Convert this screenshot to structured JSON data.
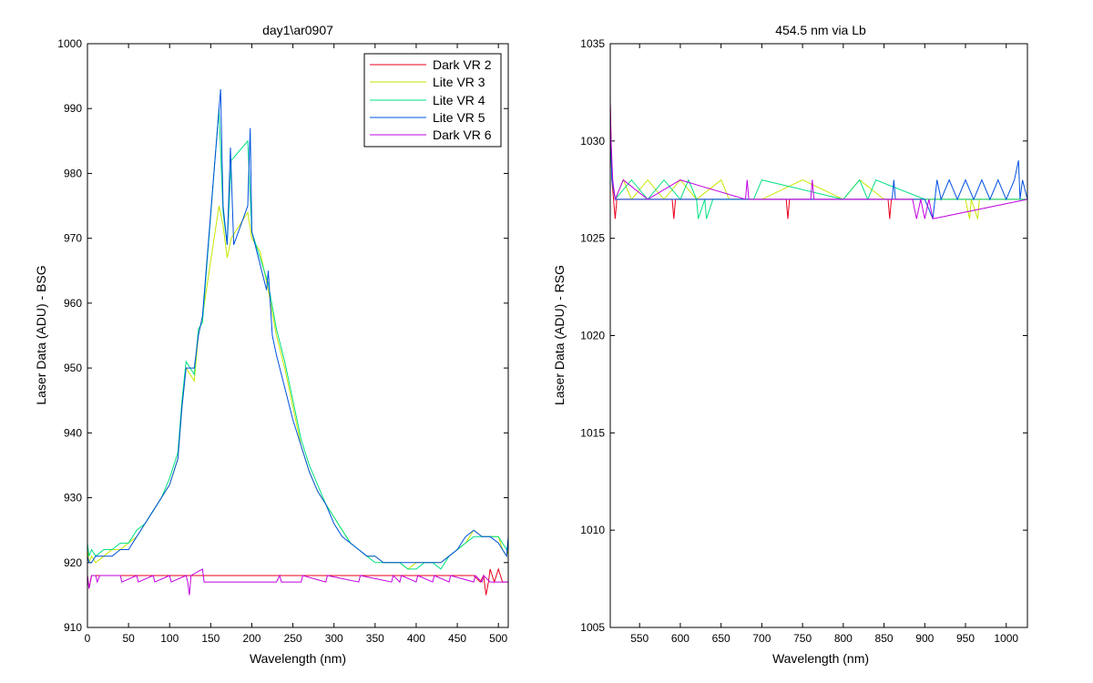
{
  "chart_data": [
    {
      "type": "line",
      "title": "day1\\ar0907",
      "xlabel": "Wavelength (nm)",
      "ylabel": "Laser Data (ADU) - BSG",
      "xlim": [
        0,
        512
      ],
      "ylim": [
        910,
        1000
      ],
      "xticks": [
        0,
        50,
        100,
        150,
        200,
        250,
        300,
        350,
        400,
        450,
        500
      ],
      "yticks": [
        910,
        920,
        930,
        940,
        950,
        960,
        970,
        980,
        990,
        1000
      ],
      "grid": false,
      "legend_position": "top-right",
      "series": [
        {
          "name": "Dark VR 2",
          "color": "#e8001c",
          "x": [
            0,
            2,
            5,
            10,
            20,
            40,
            60,
            80,
            100,
            120,
            140,
            160,
            200,
            250,
            300,
            350,
            400,
            450,
            470,
            478,
            482,
            485,
            488,
            490,
            495,
            500,
            505,
            512
          ],
          "y": [
            918,
            916,
            918,
            918,
            918,
            918,
            918,
            918,
            918,
            918,
            918,
            918,
            918,
            918,
            918,
            918,
            918,
            918,
            918,
            917,
            918,
            915,
            917,
            919,
            917,
            919,
            917,
            917
          ]
        },
        {
          "name": "Lite VR 3",
          "color": "#c8e600",
          "x": [
            0,
            2,
            5,
            10,
            20,
            30,
            40,
            50,
            60,
            70,
            80,
            90,
            100,
            110,
            115,
            120,
            125,
            130,
            135,
            140,
            160,
            165,
            170,
            175,
            195,
            200,
            210,
            220,
            230,
            240,
            250,
            260,
            270,
            280,
            290,
            300,
            310,
            320,
            330,
            340,
            350,
            360,
            370,
            380,
            390,
            400,
            410,
            420,
            430,
            440,
            450,
            460,
            470,
            480,
            490,
            500,
            505,
            510,
            512
          ],
          "y": [
            922,
            920,
            921,
            920,
            921,
            922,
            922,
            923,
            924,
            926,
            928,
            930,
            932,
            936,
            944,
            950,
            949,
            948,
            955,
            958,
            975,
            972,
            967,
            970,
            974,
            970,
            968,
            962,
            955,
            950,
            944,
            938,
            934,
            931,
            929,
            927,
            925,
            923,
            922,
            921,
            921,
            920,
            920,
            920,
            919,
            920,
            920,
            920,
            920,
            921,
            922,
            923,
            925,
            924,
            924,
            924,
            922,
            921,
            922
          ]
        },
        {
          "name": "Lite VR 4",
          "color": "#00e080",
          "x": [
            0,
            2,
            5,
            10,
            20,
            30,
            40,
            50,
            60,
            70,
            80,
            90,
            100,
            110,
            115,
            120,
            125,
            130,
            135,
            140,
            160,
            165,
            170,
            175,
            195,
            200,
            210,
            220,
            230,
            240,
            250,
            260,
            270,
            280,
            290,
            300,
            310,
            320,
            330,
            340,
            350,
            360,
            370,
            380,
            390,
            400,
            410,
            420,
            430,
            440,
            450,
            460,
            470,
            480,
            490,
            500,
            505,
            510,
            512
          ],
          "y": [
            923,
            921,
            922,
            921,
            922,
            922,
            923,
            923,
            925,
            926,
            928,
            930,
            933,
            937,
            945,
            951,
            950,
            949,
            956,
            957,
            990,
            974,
            969,
            982,
            985,
            971,
            967,
            963,
            956,
            951,
            945,
            939,
            935,
            932,
            929,
            927,
            925,
            923,
            922,
            921,
            920,
            920,
            920,
            920,
            919,
            919,
            920,
            920,
            919,
            921,
            922,
            923,
            924,
            924,
            924,
            924,
            923,
            922,
            923
          ]
        },
        {
          "name": "Lite VR 5",
          "color": "#0050e0",
          "x": [
            0,
            2,
            5,
            10,
            20,
            30,
            40,
            50,
            60,
            70,
            80,
            90,
            100,
            110,
            115,
            120,
            125,
            130,
            135,
            140,
            162,
            165,
            170,
            174,
            178,
            195,
            198,
            200,
            210,
            218,
            220,
            225,
            230,
            240,
            250,
            260,
            270,
            280,
            290,
            300,
            310,
            320,
            330,
            340,
            350,
            360,
            370,
            380,
            390,
            400,
            410,
            420,
            430,
            440,
            450,
            460,
            470,
            480,
            490,
            500,
            505,
            510,
            512
          ],
          "y": [
            921,
            920,
            920,
            921,
            921,
            921,
            922,
            922,
            924,
            926,
            928,
            930,
            932,
            936,
            944,
            950,
            950,
            950,
            955,
            958,
            993,
            975,
            969,
            984,
            969,
            975,
            987,
            971,
            966,
            962,
            965,
            955,
            952,
            947,
            942,
            938,
            934,
            931,
            929,
            926,
            924,
            923,
            922,
            921,
            921,
            920,
            920,
            920,
            920,
            920,
            920,
            920,
            920,
            921,
            922,
            924,
            925,
            924,
            924,
            923,
            922,
            921,
            924
          ]
        },
        {
          "name": "Dark VR 6",
          "color": "#c000e0",
          "x": [
            0,
            2,
            5,
            10,
            12,
            15,
            20,
            40,
            42,
            60,
            62,
            80,
            82,
            100,
            102,
            120,
            122,
            124,
            126,
            140,
            142,
            160,
            200,
            230,
            234,
            236,
            250,
            260,
            262,
            290,
            292,
            330,
            332,
            370,
            372,
            380,
            382,
            400,
            402,
            420,
            422,
            440,
            442,
            470,
            472,
            480,
            482,
            490,
            500,
            512
          ],
          "y": [
            918,
            916,
            918,
            918,
            917,
            918,
            918,
            918,
            917,
            918,
            917,
            918,
            917,
            918,
            917,
            918,
            917,
            915,
            918,
            919,
            917,
            917,
            917,
            917,
            918,
            917,
            917,
            917,
            918,
            917,
            918,
            917,
            918,
            917,
            918,
            917,
            918,
            917,
            918,
            917,
            918,
            917,
            918,
            917,
            918,
            917,
            918,
            917,
            917,
            917
          ]
        }
      ]
    },
    {
      "type": "line",
      "title": "454.5 nm via Lb",
      "xlabel": "Wavelength (nm)",
      "ylabel": "Laser Data (ADU) - RSG",
      "xlim": [
        514,
        1026
      ],
      "ylim": [
        1005,
        1035
      ],
      "xticks": [
        550,
        600,
        650,
        700,
        750,
        800,
        850,
        900,
        950,
        1000
      ],
      "yticks": [
        1005,
        1010,
        1015,
        1020,
        1025,
        1030,
        1035
      ],
      "grid": false,
      "legend_position": "none",
      "series": [
        {
          "name": "Dark VR 2",
          "color": "#e8001c",
          "x": [
            514,
            516,
            518,
            520,
            522,
            524,
            530,
            590,
            592,
            594,
            600,
            730,
            732,
            734,
            740,
            855,
            857,
            859,
            870,
            1026
          ],
          "y": [
            1032,
            1028,
            1027,
            1026,
            1027,
            1027,
            1027,
            1027,
            1026,
            1027,
            1027,
            1027,
            1026,
            1027,
            1027,
            1027,
            1026,
            1027,
            1027,
            1027
          ]
        },
        {
          "name": "Lite VR 3",
          "color": "#c8e600",
          "x": [
            514,
            516,
            520,
            530,
            540,
            560,
            580,
            600,
            620,
            650,
            660,
            700,
            750,
            800,
            820,
            850,
            950,
            955,
            957,
            965,
            967,
            1000,
            1026
          ],
          "y": [
            1031,
            1028,
            1027,
            1028,
            1027,
            1028,
            1027,
            1028,
            1027,
            1028,
            1027,
            1027,
            1028,
            1027,
            1028,
            1027,
            1027,
            1026,
            1027,
            1026,
            1027,
            1027,
            1027
          ]
        },
        {
          "name": "Lite VR 4",
          "color": "#00e080",
          "x": [
            514,
            516,
            520,
            540,
            560,
            580,
            600,
            610,
            620,
            622,
            630,
            632,
            640,
            690,
            700,
            800,
            820,
            830,
            840,
            900,
            1026
          ],
          "y": [
            1031,
            1028,
            1027,
            1028,
            1027,
            1028,
            1027,
            1028,
            1027,
            1026,
            1027,
            1026,
            1027,
            1027,
            1028,
            1027,
            1028,
            1027,
            1028,
            1027,
            1027
          ]
        },
        {
          "name": "Lite VR 5",
          "color": "#0050e0",
          "x": [
            514,
            516,
            520,
            600,
            860,
            862,
            864,
            900,
            910,
            915,
            920,
            930,
            940,
            950,
            960,
            970,
            980,
            990,
            1000,
            1010,
            1015,
            1017,
            1020,
            1026
          ],
          "y": [
            1031,
            1028,
            1027,
            1027,
            1027,
            1028,
            1027,
            1027,
            1026,
            1028,
            1027,
            1028,
            1027,
            1028,
            1027,
            1028,
            1027,
            1028,
            1027,
            1028,
            1029,
            1027,
            1028,
            1027
          ]
        },
        {
          "name": "Dark VR 6",
          "color": "#c000e0",
          "x": [
            514,
            515,
            517,
            520,
            530,
            560,
            600,
            680,
            682,
            684,
            760,
            762,
            764,
            885,
            890,
            895,
            900,
            905,
            910,
            1026
          ],
          "y": [
            1032,
            1030,
            1028,
            1027,
            1028,
            1027,
            1028,
            1027,
            1028,
            1027,
            1027,
            1028,
            1027,
            1027,
            1026,
            1027,
            1026,
            1027,
            1026,
            1027
          ]
        }
      ]
    }
  ]
}
